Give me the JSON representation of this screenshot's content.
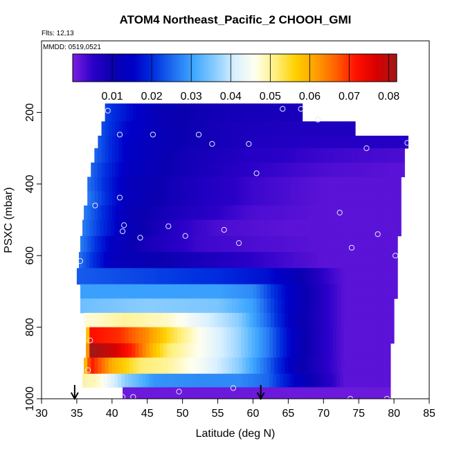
{
  "chart_data": {
    "type": "heatmap",
    "title": "ATOM4 Northeast_Pacific_2 CHOOH_GMI",
    "info_lines": [
      "Flts: 12,13",
      "MMDD: 0519,0521"
    ],
    "xlabel": "Latitude (deg N)",
    "ylabel": "PSXC (mbar)",
    "xlim": [
      30,
      85
    ],
    "ylim": [
      1000,
      0
    ],
    "x_ticks": [
      30,
      35,
      40,
      45,
      50,
      55,
      60,
      65,
      70,
      75,
      80,
      85
    ],
    "y_ticks": [
      200,
      400,
      600,
      800,
      1000
    ],
    "colorbar": {
      "min": 0.0,
      "max": 0.082,
      "ticks": [
        0.01,
        0.02,
        0.03,
        0.04,
        0.05,
        0.06,
        0.07,
        0.08
      ],
      "colors": [
        "#7b1fe0",
        "#2a00c8",
        "#0a00b0",
        "#0000c8",
        "#0030e0",
        "#2070f0",
        "#40a8ff",
        "#88ccff",
        "#d8f0ff",
        "#fffff0",
        "#fff080",
        "#ffd000",
        "#ffa000",
        "#ff6000",
        "#ff1000",
        "#d80000",
        "#a01818"
      ]
    },
    "curtain_rows": [
      {
        "p_top": 175,
        "p_bot": 225,
        "x0": 39.0,
        "x1": 67.0,
        "vals": [
          [
            39,
            0.022
          ],
          [
            43,
            0.016
          ],
          [
            47,
            0.011
          ],
          [
            55,
            0.009
          ],
          [
            62,
            0.008
          ],
          [
            67,
            0.008
          ]
        ]
      },
      {
        "p_top": 225,
        "p_bot": 265,
        "x0": 38.5,
        "x1": 74.5,
        "vals": [
          [
            38.5,
            0.023
          ],
          [
            42,
            0.016
          ],
          [
            48,
            0.011
          ],
          [
            56,
            0.008
          ],
          [
            65,
            0.007
          ],
          [
            74.5,
            0.007
          ]
        ]
      },
      {
        "p_top": 265,
        "p_bot": 300,
        "x0": 38.0,
        "x1": 82.0,
        "vals": [
          [
            38,
            0.024
          ],
          [
            42,
            0.015
          ],
          [
            50,
            0.01
          ],
          [
            60,
            0.007
          ],
          [
            70,
            0.006
          ],
          [
            82,
            0.006
          ]
        ]
      },
      {
        "p_top": 300,
        "p_bot": 340,
        "x0": 37.5,
        "x1": 81.5,
        "vals": [
          [
            37.5,
            0.025
          ],
          [
            42,
            0.015
          ],
          [
            50,
            0.009
          ],
          [
            60,
            0.006
          ],
          [
            70,
            0.004
          ],
          [
            81.5,
            0.003
          ]
        ]
      },
      {
        "p_top": 340,
        "p_bot": 380,
        "x0": 37.0,
        "x1": 81.5,
        "vals": [
          [
            37,
            0.025
          ],
          [
            42,
            0.014
          ],
          [
            50,
            0.009
          ],
          [
            60,
            0.005
          ],
          [
            70,
            0.003
          ],
          [
            81.5,
            0.002
          ]
        ]
      },
      {
        "p_top": 380,
        "p_bot": 420,
        "x0": 36.5,
        "x1": 81.0,
        "vals": [
          [
            36.5,
            0.026
          ],
          [
            42,
            0.013
          ],
          [
            50,
            0.008
          ],
          [
            60,
            0.004
          ],
          [
            70,
            0.002
          ],
          [
            81,
            0.002
          ]
        ]
      },
      {
        "p_top": 420,
        "p_bot": 460,
        "x0": 36.5,
        "x1": 81.0,
        "vals": [
          [
            36.5,
            0.027
          ],
          [
            42,
            0.013
          ],
          [
            50,
            0.008
          ],
          [
            60,
            0.004
          ],
          [
            70,
            0.002
          ],
          [
            81,
            0.002
          ]
        ]
      },
      {
        "p_top": 460,
        "p_bot": 500,
        "x0": 36.0,
        "x1": 81.0,
        "vals": [
          [
            36,
            0.027
          ],
          [
            42,
            0.012
          ],
          [
            50,
            0.007
          ],
          [
            60,
            0.003
          ],
          [
            70,
            0.002
          ],
          [
            81,
            0.002
          ]
        ]
      },
      {
        "p_top": 500,
        "p_bot": 545,
        "x0": 35.8,
        "x1": 81.0,
        "vals": [
          [
            35.8,
            0.027
          ],
          [
            42,
            0.012
          ],
          [
            50,
            0.005
          ],
          [
            55,
            0.003
          ],
          [
            65,
            0.002
          ],
          [
            81,
            0.002
          ]
        ]
      },
      {
        "p_top": 545,
        "p_bot": 590,
        "x0": 35.5,
        "x1": 80.5,
        "vals": [
          [
            35.5,
            0.027
          ],
          [
            40,
            0.014
          ],
          [
            45,
            0.008
          ],
          [
            52,
            0.004
          ],
          [
            60,
            0.003
          ],
          [
            70,
            0.002
          ],
          [
            80.5,
            0.002
          ]
        ]
      },
      {
        "p_top": 590,
        "p_bot": 635,
        "x0": 35.3,
        "x1": 80.5,
        "vals": [
          [
            35.3,
            0.026
          ],
          [
            40,
            0.013
          ],
          [
            50,
            0.009
          ],
          [
            60,
            0.005
          ],
          [
            70,
            0.002
          ],
          [
            80.5,
            0.002
          ]
        ]
      },
      {
        "p_top": 635,
        "p_bot": 680,
        "x0": 35.0,
        "x1": 80.5,
        "vals": [
          [
            35,
            0.024
          ],
          [
            45,
            0.022
          ],
          [
            55,
            0.02
          ],
          [
            62,
            0.017
          ],
          [
            66,
            0.012
          ],
          [
            70,
            0.005
          ],
          [
            73,
            0.002
          ],
          [
            80.5,
            0.002
          ]
        ]
      },
      {
        "p_top": 680,
        "p_bot": 720,
        "x0": 35.5,
        "x1": 80.5,
        "vals": [
          [
            35.5,
            0.03
          ],
          [
            45,
            0.03
          ],
          [
            55,
            0.03
          ],
          [
            60,
            0.028
          ],
          [
            65,
            0.015
          ],
          [
            70,
            0.006
          ],
          [
            73,
            0.002
          ],
          [
            80.5,
            0.002
          ]
        ]
      },
      {
        "p_top": 720,
        "p_bot": 760,
        "x0": 35.5,
        "x1": 80.0,
        "vals": [
          [
            35.5,
            0.034
          ],
          [
            45,
            0.036
          ],
          [
            55,
            0.035
          ],
          [
            60,
            0.03
          ],
          [
            65,
            0.015
          ],
          [
            70,
            0.006
          ],
          [
            73,
            0.002
          ],
          [
            80,
            0.002
          ]
        ]
      },
      {
        "p_top": 760,
        "p_bot": 800,
        "x0": 36.0,
        "x1": 80.0,
        "vals": [
          [
            36,
            0.047
          ],
          [
            42,
            0.05
          ],
          [
            48,
            0.048
          ],
          [
            53,
            0.042
          ],
          [
            58,
            0.036
          ],
          [
            62,
            0.025
          ],
          [
            66,
            0.012
          ],
          [
            70,
            0.006
          ],
          [
            73,
            0.002
          ],
          [
            80,
            0.002
          ]
        ]
      },
      {
        "p_top": 800,
        "p_bot": 845,
        "x0": 36.3,
        "x1": 80.0,
        "vals": [
          [
            36.3,
            0.05
          ],
          [
            37,
            0.072
          ],
          [
            41,
            0.07
          ],
          [
            45,
            0.063
          ],
          [
            48,
            0.055
          ],
          [
            53,
            0.045
          ],
          [
            58,
            0.037
          ],
          [
            62,
            0.027
          ],
          [
            66,
            0.013
          ],
          [
            70,
            0.006
          ],
          [
            73,
            0.002
          ],
          [
            80,
            0.002
          ]
        ]
      },
      {
        "p_top": 845,
        "p_bot": 885,
        "x0": 36.3,
        "x1": 79.5,
        "vals": [
          [
            36.3,
            0.052
          ],
          [
            37,
            0.082
          ],
          [
            40,
            0.078
          ],
          [
            43,
            0.07
          ],
          [
            46,
            0.058
          ],
          [
            48,
            0.052
          ],
          [
            53,
            0.045
          ],
          [
            58,
            0.037
          ],
          [
            62,
            0.027
          ],
          [
            66,
            0.013
          ],
          [
            70,
            0.006
          ],
          [
            73,
            0.002
          ],
          [
            79.5,
            0.002
          ]
        ]
      },
      {
        "p_top": 885,
        "p_bot": 930,
        "x0": 36.0,
        "x1": 79.5,
        "vals": [
          [
            36,
            0.055
          ],
          [
            37,
            0.072
          ],
          [
            40,
            0.06
          ],
          [
            44,
            0.052
          ],
          [
            48,
            0.05
          ],
          [
            53,
            0.044
          ],
          [
            58,
            0.036
          ],
          [
            62,
            0.025
          ],
          [
            66,
            0.012
          ],
          [
            70,
            0.006
          ],
          [
            73,
            0.002
          ],
          [
            79.5,
            0.002
          ]
        ]
      },
      {
        "p_top": 930,
        "p_bot": 968,
        "x0": 35.8,
        "x1": 79.5,
        "vals": [
          [
            35.8,
            0.05
          ],
          [
            38,
            0.048
          ],
          [
            42,
            0.036
          ],
          [
            46,
            0.029
          ],
          [
            52,
            0.028
          ],
          [
            58,
            0.028
          ],
          [
            62,
            0.025
          ],
          [
            66,
            0.015
          ],
          [
            70,
            0.007
          ],
          [
            73,
            0.002
          ],
          [
            79.5,
            0.002
          ]
        ]
      },
      {
        "p_top": 968,
        "p_bot": 1000,
        "x0": 41.5,
        "x1": 79.5,
        "vals": [
          [
            41.5,
            0.001
          ],
          [
            79.5,
            0.001
          ]
        ]
      }
    ],
    "markers": [
      [
        39.4,
        195
      ],
      [
        41.1,
        262
      ],
      [
        45.8,
        262
      ],
      [
        52.3,
        262
      ],
      [
        54.2,
        288
      ],
      [
        59.4,
        288
      ],
      [
        64.2,
        190
      ],
      [
        66.8,
        190
      ],
      [
        69.2,
        220
      ],
      [
        76.1,
        300
      ],
      [
        81.9,
        285
      ],
      [
        60.5,
        370
      ],
      [
        37.6,
        460
      ],
      [
        41.1,
        438
      ],
      [
        41.7,
        515
      ],
      [
        41.5,
        532
      ],
      [
        44.0,
        550
      ],
      [
        48.0,
        518
      ],
      [
        50.4,
        545
      ],
      [
        55.9,
        528
      ],
      [
        58.0,
        565
      ],
      [
        72.3,
        480
      ],
      [
        74.0,
        578
      ],
      [
        77.7,
        540
      ],
      [
        80.2,
        600
      ],
      [
        35.5,
        615
      ],
      [
        36.9,
        837
      ],
      [
        36.6,
        920
      ],
      [
        36.2,
        955
      ],
      [
        41.5,
        995
      ],
      [
        43.0,
        995
      ],
      [
        49.5,
        980
      ],
      [
        57.2,
        970
      ],
      [
        73.8,
        1000
      ],
      [
        79.0,
        1000
      ]
    ],
    "flight_markers_x": [
      34.7,
      61.1
    ]
  }
}
